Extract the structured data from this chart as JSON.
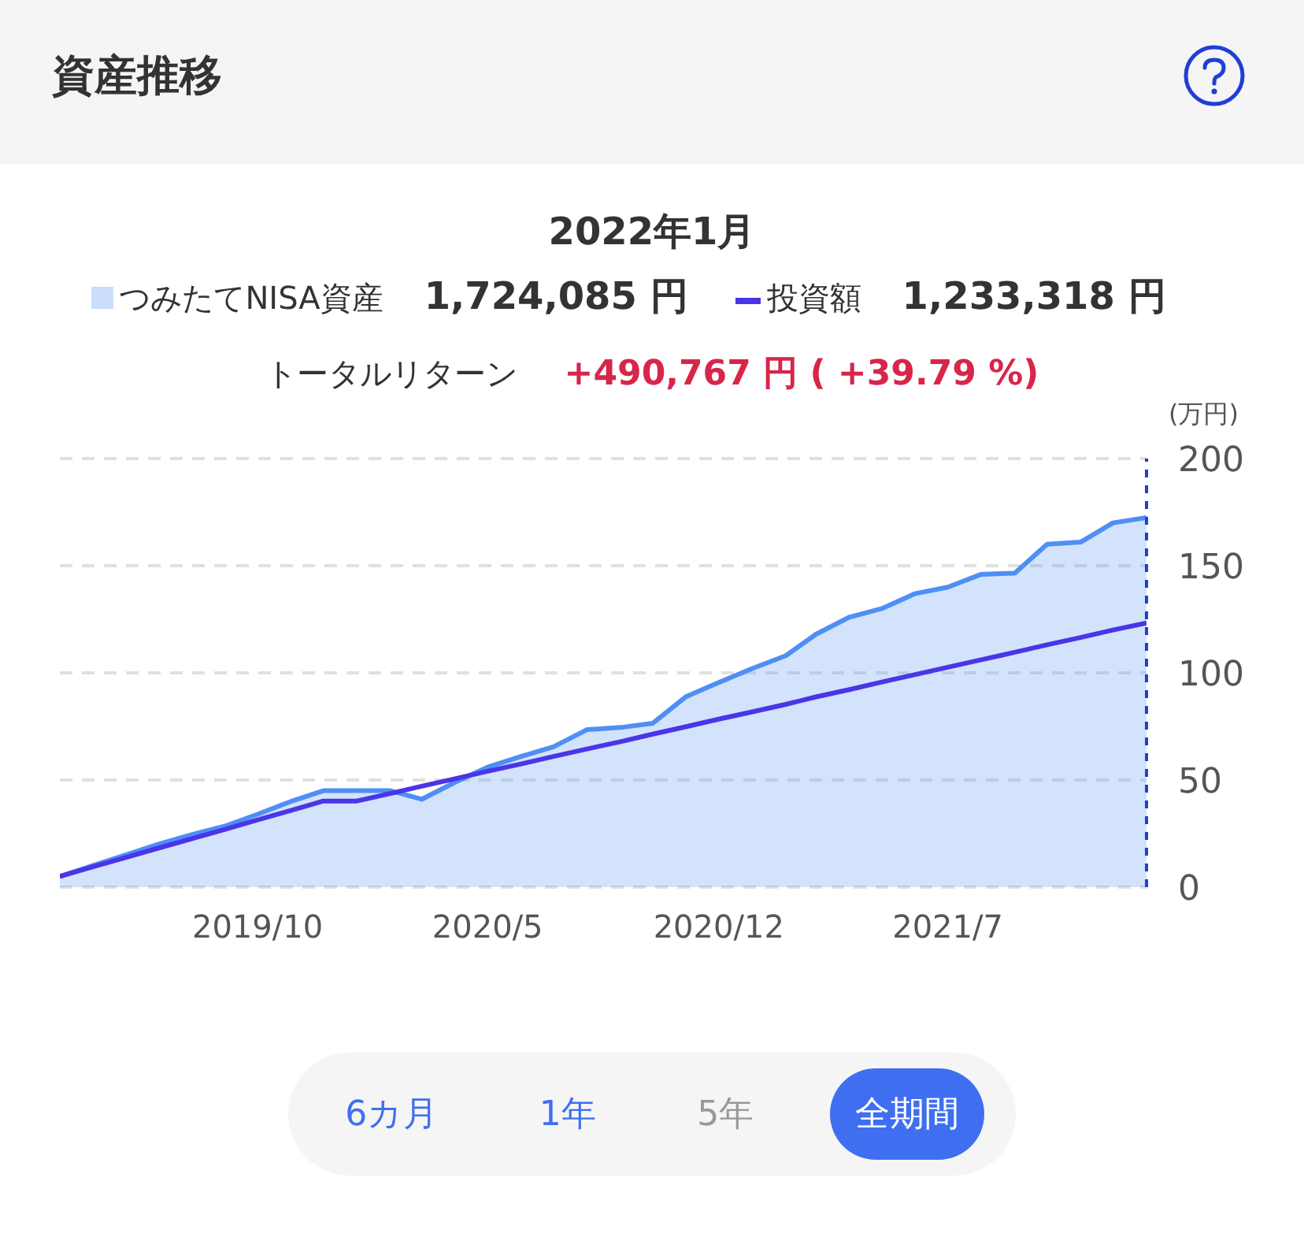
{
  "chart_data": {
    "type": "area",
    "title": "資産推移",
    "subtitle": "2022年1月",
    "ylabel": "(万円)",
    "x": [
      "2019-04",
      "2019-05",
      "2019-06",
      "2019-07",
      "2019-08",
      "2019-09",
      "2019-10",
      "2019-11",
      "2019-12",
      "2020-01",
      "2020-02",
      "2020-03",
      "2020-04",
      "2020-05",
      "2020-06",
      "2020-07",
      "2020-08",
      "2020-09",
      "2020-10",
      "2020-11",
      "2020-12",
      "2021-01",
      "2021-02",
      "2021-03",
      "2021-04",
      "2021-05",
      "2021-06",
      "2021-07",
      "2021-08",
      "2021-09",
      "2021-10",
      "2021-11",
      "2021-12",
      "2022-01"
    ],
    "series": [
      {
        "name": "つみたてNISA資産",
        "color": "#4f8ef5",
        "values": [
          5,
          10,
          15,
          20,
          24.5,
          28.5,
          34,
          40,
          45,
          45,
          45,
          41,
          49,
          56,
          61,
          65.5,
          73.5,
          74.5,
          76.5,
          89,
          95.5,
          102,
          108,
          118,
          126,
          130,
          137,
          140,
          146,
          146.5,
          160,
          161,
          170,
          172.4
        ]
      },
      {
        "name": "投資額",
        "type": "line",
        "color": "#4a35e8",
        "values": [
          5,
          9.4,
          13.8,
          18.2,
          22.6,
          27,
          31.4,
          35.8,
          40.2,
          40.2,
          43.7,
          47.1,
          50.6,
          54.1,
          57.5,
          61,
          64.5,
          67.9,
          71.4,
          74.9,
          78.4,
          81.8,
          85.3,
          88.8,
          92.2,
          95.7,
          99.2,
          102.6,
          106.1,
          109.6,
          113.1,
          116.5,
          120,
          123.3
        ]
      }
    ],
    "xlim": [
      "2019-04",
      "2022-01"
    ],
    "xticks": [
      {
        "value": "2019-10",
        "label": "2019/10"
      },
      {
        "value": "2020-05",
        "label": "2020/5"
      },
      {
        "value": "2020-12",
        "label": "2020/12"
      },
      {
        "value": "2021-07",
        "label": "2021/7"
      }
    ],
    "ylim": [
      0,
      200
    ],
    "yticks": [
      0,
      50,
      100,
      150,
      200
    ],
    "grid": "y",
    "legend": "top",
    "marker": "none",
    "ref_lines": [
      {
        "axis": "x",
        "value": "2022-01",
        "color": "#1f3fd6",
        "line_style": "dashed"
      }
    ],
    "annotations": [
      "1,724,085 円",
      "1,233,318 円",
      "トータルリターン",
      "+490,767 円 ( +39.79 %)",
      "6カ月",
      "1年",
      "5年",
      "全期間"
    ]
  }
}
